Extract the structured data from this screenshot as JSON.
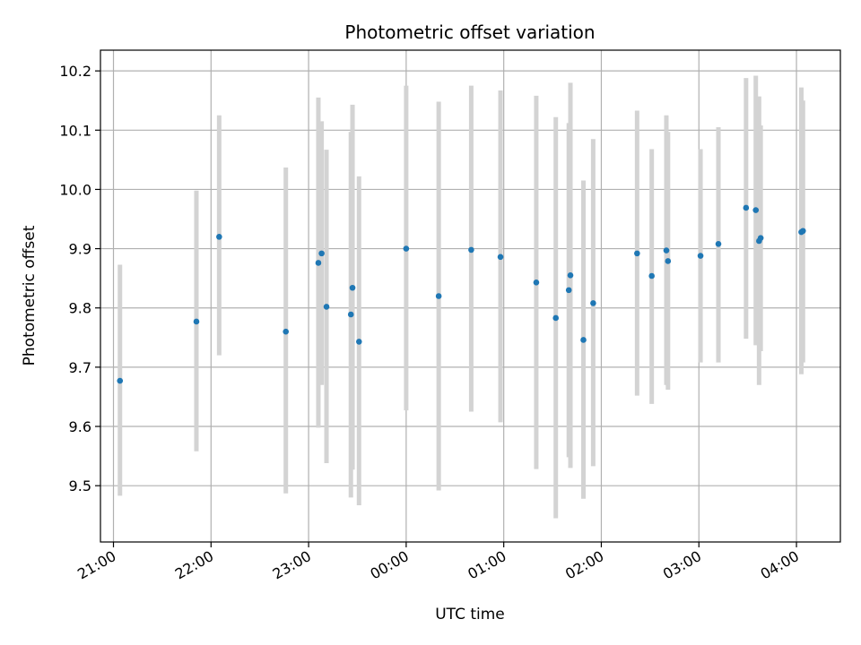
{
  "chart_data": {
    "type": "scatter",
    "title": "Photometric offset variation",
    "xlabel": "UTC time",
    "ylabel": "Photometric offset",
    "x_axis": {
      "kind": "time",
      "min": "20:52",
      "max": "04:27",
      "ticks": [
        "21:00",
        "22:00",
        "23:00",
        "00:00",
        "01:00",
        "02:00",
        "03:00",
        "04:00"
      ]
    },
    "y_axis": {
      "min": 9.405,
      "max": 10.235,
      "ticks": [
        "9.5",
        "9.6",
        "9.7",
        "9.8",
        "9.9",
        "10.0",
        "10.1",
        "10.2"
      ]
    },
    "grid": true,
    "series": [
      {
        "color": "#1f77b4",
        "error_bar_color": "#d3d3d3",
        "points": [
          {
            "x": "21:04",
            "y": 9.677,
            "ylow": 9.483,
            "yhigh": 9.873
          },
          {
            "x": "21:51",
            "y": 9.777,
            "ylow": 9.558,
            "yhigh": 9.998
          },
          {
            "x": "22:05",
            "y": 9.92,
            "ylow": 9.72,
            "yhigh": 10.125
          },
          {
            "x": "22:46",
            "y": 9.76,
            "ylow": 9.487,
            "yhigh": 10.037
          },
          {
            "x": "23:06",
            "y": 9.876,
            "ylow": 9.598,
            "yhigh": 10.155
          },
          {
            "x": "23:08",
            "y": 9.892,
            "ylow": 9.67,
            "yhigh": 10.115
          },
          {
            "x": "23:11",
            "y": 9.802,
            "ylow": 9.538,
            "yhigh": 10.067
          },
          {
            "x": "23:26",
            "y": 9.789,
            "ylow": 9.48,
            "yhigh": 10.097
          },
          {
            "x": "23:27",
            "y": 9.834,
            "ylow": 9.527,
            "yhigh": 10.143
          },
          {
            "x": "23:31",
            "y": 9.743,
            "ylow": 9.467,
            "yhigh": 10.022
          },
          {
            "x": "00:00",
            "y": 9.9,
            "ylow": 9.627,
            "yhigh": 10.175
          },
          {
            "x": "00:20",
            "y": 9.82,
            "ylow": 9.492,
            "yhigh": 10.148
          },
          {
            "x": "00:40",
            "y": 9.898,
            "ylow": 9.625,
            "yhigh": 10.175
          },
          {
            "x": "00:58",
            "y": 9.886,
            "ylow": 9.607,
            "yhigh": 10.167
          },
          {
            "x": "01:20",
            "y": 9.843,
            "ylow": 9.528,
            "yhigh": 10.158
          },
          {
            "x": "01:32",
            "y": 9.783,
            "ylow": 9.445,
            "yhigh": 10.122
          },
          {
            "x": "01:40",
            "y": 9.83,
            "ylow": 9.548,
            "yhigh": 10.112
          },
          {
            "x": "01:41",
            "y": 9.855,
            "ylow": 9.53,
            "yhigh": 10.18
          },
          {
            "x": "01:49",
            "y": 9.746,
            "ylow": 9.478,
            "yhigh": 10.015
          },
          {
            "x": "01:55",
            "y": 9.808,
            "ylow": 9.533,
            "yhigh": 10.085
          },
          {
            "x": "02:22",
            "y": 9.892,
            "ylow": 9.652,
            "yhigh": 10.133
          },
          {
            "x": "02:31",
            "y": 9.854,
            "ylow": 9.638,
            "yhigh": 10.068
          },
          {
            "x": "02:40",
            "y": 9.897,
            "ylow": 9.67,
            "yhigh": 10.125
          },
          {
            "x": "02:41",
            "y": 9.879,
            "ylow": 9.662,
            "yhigh": 10.097
          },
          {
            "x": "03:01",
            "y": 9.888,
            "ylow": 9.708,
            "yhigh": 10.068
          },
          {
            "x": "03:12",
            "y": 9.908,
            "ylow": 9.708,
            "yhigh": 10.105
          },
          {
            "x": "03:29",
            "y": 9.969,
            "ylow": 9.748,
            "yhigh": 10.188
          },
          {
            "x": "03:35",
            "y": 9.965,
            "ylow": 9.737,
            "yhigh": 10.192
          },
          {
            "x": "03:37",
            "y": 9.913,
            "ylow": 9.67,
            "yhigh": 10.157
          },
          {
            "x": "03:38",
            "y": 9.918,
            "ylow": 9.727,
            "yhigh": 10.108
          },
          {
            "x": "04:03",
            "y": 9.928,
            "ylow": 9.688,
            "yhigh": 10.172
          },
          {
            "x": "04:04",
            "y": 9.93,
            "ylow": 9.708,
            "yhigh": 10.15
          }
        ]
      }
    ]
  }
}
